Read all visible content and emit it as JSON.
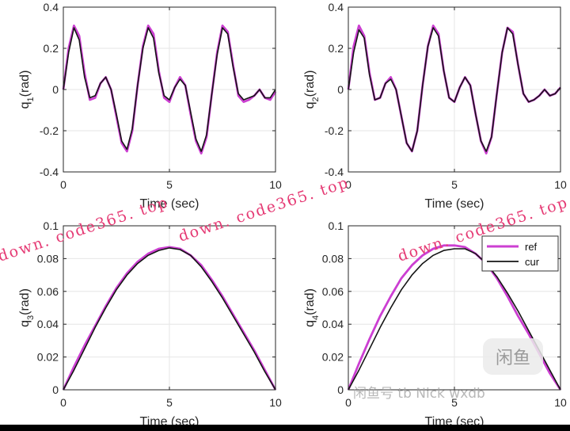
{
  "colors": {
    "ref": "#cc3fd2",
    "cur": "#151515",
    "grid": "#e6e6e6",
    "axis": "#262626",
    "watermark": "#e53a74"
  },
  "watermark_text": "down. code365. top",
  "overlay": {
    "box_text": "闲鱼",
    "bottom_text": "闲鱼号 tb Nick wxdb"
  },
  "chart_data": [
    {
      "type": "line",
      "id": "q1",
      "ylabel_base": "q",
      "ylabel_sub": "1",
      "ylabel_unit": "(rad)",
      "xlabel": "Time (sec)",
      "xlim": [
        0,
        10
      ],
      "ylim": [
        -0.4,
        0.4
      ],
      "xticks": [
        "0",
        "5",
        "10"
      ],
      "yticks": [
        "-0.4",
        "-0.2",
        "0",
        "0.2",
        "0.4"
      ],
      "grid": true,
      "series": [
        {
          "name": "ref",
          "x": [
            0,
            0.25,
            0.5,
            0.75,
            1,
            1.25,
            1.5,
            1.75,
            2,
            2.25,
            2.5,
            2.75,
            3,
            3.25,
            3.5,
            3.75,
            4,
            4.25,
            4.5,
            4.75,
            5,
            5.25,
            5.5,
            5.75,
            6,
            6.25,
            6.5,
            6.75,
            7,
            7.25,
            7.5,
            7.75,
            8,
            8.25,
            8.5,
            8.75,
            9,
            9.25,
            9.5,
            9.75,
            10
          ],
          "values": [
            0,
            0.2,
            0.31,
            0.26,
            0.08,
            -0.05,
            -0.04,
            0.03,
            0.06,
            0.0,
            -0.13,
            -0.26,
            -0.3,
            -0.2,
            0.02,
            0.21,
            0.31,
            0.27,
            0.09,
            -0.04,
            -0.06,
            0.01,
            0.06,
            0.02,
            -0.12,
            -0.25,
            -0.31,
            -0.23,
            -0.02,
            0.18,
            0.31,
            0.28,
            0.12,
            -0.03,
            -0.06,
            -0.05,
            -0.03,
            0.0,
            -0.04,
            -0.05,
            -0.01
          ]
        },
        {
          "name": "cur",
          "x": [
            0,
            0.25,
            0.5,
            0.75,
            1,
            1.25,
            1.5,
            1.75,
            2,
            2.25,
            2.5,
            2.75,
            3,
            3.25,
            3.5,
            3.75,
            4,
            4.25,
            4.5,
            4.75,
            5,
            5.25,
            5.5,
            5.75,
            6,
            6.25,
            6.5,
            6.75,
            7,
            7.25,
            7.5,
            7.75,
            8,
            8.25,
            8.5,
            8.75,
            9,
            9.25,
            9.5,
            9.75,
            10
          ],
          "values": [
            0,
            0.18,
            0.3,
            0.24,
            0.06,
            -0.04,
            -0.03,
            0.03,
            0.06,
            0.0,
            -0.12,
            -0.25,
            -0.29,
            -0.19,
            0.02,
            0.2,
            0.3,
            0.25,
            0.08,
            -0.03,
            -0.05,
            0.01,
            0.05,
            0.02,
            -0.11,
            -0.24,
            -0.3,
            -0.22,
            -0.02,
            0.17,
            0.3,
            0.27,
            0.11,
            -0.02,
            -0.05,
            -0.04,
            -0.03,
            0.0,
            -0.04,
            -0.04,
            0.0
          ]
        }
      ]
    },
    {
      "type": "line",
      "id": "q2",
      "ylabel_base": "q",
      "ylabel_sub": "2",
      "ylabel_unit": "(rad)",
      "xlabel": "Time (sec)",
      "xlim": [
        0,
        10
      ],
      "ylim": [
        -0.4,
        0.4
      ],
      "xticks": [
        "0",
        "5",
        "10"
      ],
      "yticks": [
        "-0.4",
        "-0.2",
        "0",
        "0.2",
        "0.4"
      ],
      "grid": true,
      "series": [
        {
          "name": "ref",
          "x": [
            0,
            0.25,
            0.5,
            0.75,
            1,
            1.25,
            1.5,
            1.75,
            2,
            2.25,
            2.5,
            2.75,
            3,
            3.25,
            3.5,
            3.75,
            4,
            4.25,
            4.5,
            4.75,
            5,
            5.25,
            5.5,
            5.75,
            6,
            6.25,
            6.5,
            6.75,
            7,
            7.25,
            7.5,
            7.75,
            8,
            8.25,
            8.5,
            8.75,
            9,
            9.25,
            9.5,
            9.75,
            10
          ],
          "values": [
            0,
            0.21,
            0.31,
            0.26,
            0.08,
            -0.05,
            -0.04,
            0.03,
            0.06,
            0.0,
            -0.13,
            -0.26,
            -0.3,
            -0.2,
            0.02,
            0.21,
            0.31,
            0.27,
            0.09,
            -0.04,
            -0.06,
            0.01,
            0.06,
            0.02,
            -0.12,
            -0.25,
            -0.31,
            -0.23,
            -0.02,
            0.18,
            0.3,
            0.28,
            0.12,
            -0.02,
            -0.06,
            -0.05,
            -0.03,
            0.0,
            -0.03,
            -0.02,
            0.01
          ]
        },
        {
          "name": "cur",
          "x": [
            0,
            0.25,
            0.5,
            0.75,
            1,
            1.25,
            1.5,
            1.75,
            2,
            2.25,
            2.5,
            2.75,
            3,
            3.25,
            3.5,
            3.75,
            4,
            4.25,
            4.5,
            4.75,
            5,
            5.25,
            5.5,
            5.75,
            6,
            6.25,
            6.5,
            6.75,
            7,
            7.25,
            7.5,
            7.75,
            8,
            8.25,
            8.5,
            8.75,
            9,
            9.25,
            9.5,
            9.75,
            10
          ],
          "values": [
            0,
            0.18,
            0.29,
            0.25,
            0.07,
            -0.05,
            -0.04,
            0.03,
            0.05,
            0.0,
            -0.13,
            -0.26,
            -0.3,
            -0.2,
            0.02,
            0.21,
            0.3,
            0.26,
            0.09,
            -0.04,
            -0.06,
            0.01,
            0.06,
            0.02,
            -0.12,
            -0.25,
            -0.3,
            -0.23,
            -0.02,
            0.18,
            0.3,
            0.27,
            0.12,
            -0.02,
            -0.06,
            -0.05,
            -0.03,
            0.0,
            -0.03,
            -0.02,
            0.01
          ]
        }
      ]
    },
    {
      "type": "line",
      "id": "q3",
      "ylabel_base": "q",
      "ylabel_sub": "3",
      "ylabel_unit": "(rad)",
      "xlabel": "Time (sec)",
      "xlim": [
        0,
        10
      ],
      "ylim": [
        0,
        0.1
      ],
      "xticks": [
        "0",
        "5",
        "10"
      ],
      "yticks": [
        "0",
        "0.02",
        "0.04",
        "0.06",
        "0.08",
        "0.1"
      ],
      "grid": true,
      "series": [
        {
          "name": "ref",
          "x": [
            0,
            0.5,
            1,
            1.5,
            2,
            2.5,
            3,
            3.5,
            4,
            4.5,
            5,
            5.5,
            6,
            6.5,
            7,
            7.5,
            8,
            8.5,
            9,
            9.5,
            10
          ],
          "values": [
            0,
            0.014,
            0.027,
            0.039,
            0.051,
            0.062,
            0.071,
            0.078,
            0.083,
            0.086,
            0.087,
            0.086,
            0.082,
            0.076,
            0.067,
            0.057,
            0.046,
            0.035,
            0.024,
            0.012,
            0
          ]
        },
        {
          "name": "cur",
          "x": [
            0,
            0.5,
            1,
            1.5,
            2,
            2.5,
            3,
            3.5,
            4,
            4.5,
            5,
            5.5,
            6,
            6.5,
            7,
            7.5,
            8,
            8.5,
            9,
            9.5,
            10
          ],
          "values": [
            0,
            0.012,
            0.025,
            0.038,
            0.05,
            0.061,
            0.07,
            0.077,
            0.082,
            0.085,
            0.0865,
            0.0855,
            0.082,
            0.075,
            0.066,
            0.056,
            0.045,
            0.034,
            0.023,
            0.011,
            0
          ]
        }
      ]
    },
    {
      "type": "line",
      "id": "q4",
      "ylabel_base": "q",
      "ylabel_sub": "4",
      "ylabel_unit": "(rad)",
      "xlabel": "Time (sec)",
      "xlim": [
        0,
        10
      ],
      "ylim": [
        0,
        0.1
      ],
      "xticks": [
        "0",
        "5",
        "10"
      ],
      "yticks": [
        "0",
        "0.02",
        "0.04",
        "0.06",
        "0.08",
        "0.1"
      ],
      "grid": true,
      "legend": {
        "position": "top-right",
        "entries": [
          "ref",
          "cur"
        ]
      },
      "series": [
        {
          "name": "ref",
          "x": [
            0,
            0.5,
            1,
            1.5,
            2,
            2.5,
            3,
            3.5,
            4,
            4.5,
            5,
            5.5,
            6,
            6.5,
            7,
            7.5,
            8,
            8.5,
            9,
            9.5,
            10
          ],
          "values": [
            0,
            0.016,
            0.031,
            0.045,
            0.057,
            0.068,
            0.076,
            0.082,
            0.086,
            0.088,
            0.088,
            0.087,
            0.083,
            0.077,
            0.068,
            0.057,
            0.045,
            0.034,
            0.022,
            0.01,
            0
          ]
        },
        {
          "name": "cur",
          "x": [
            0,
            0.5,
            1,
            1.5,
            2,
            2.5,
            3,
            3.5,
            4,
            4.5,
            5,
            5.5,
            6,
            6.5,
            7,
            7.5,
            8,
            8.5,
            9,
            9.5,
            10
          ],
          "values": [
            0,
            0.012,
            0.025,
            0.038,
            0.05,
            0.061,
            0.07,
            0.077,
            0.082,
            0.085,
            0.086,
            0.086,
            0.083,
            0.077,
            0.069,
            0.059,
            0.048,
            0.036,
            0.024,
            0.012,
            0
          ]
        }
      ]
    }
  ]
}
